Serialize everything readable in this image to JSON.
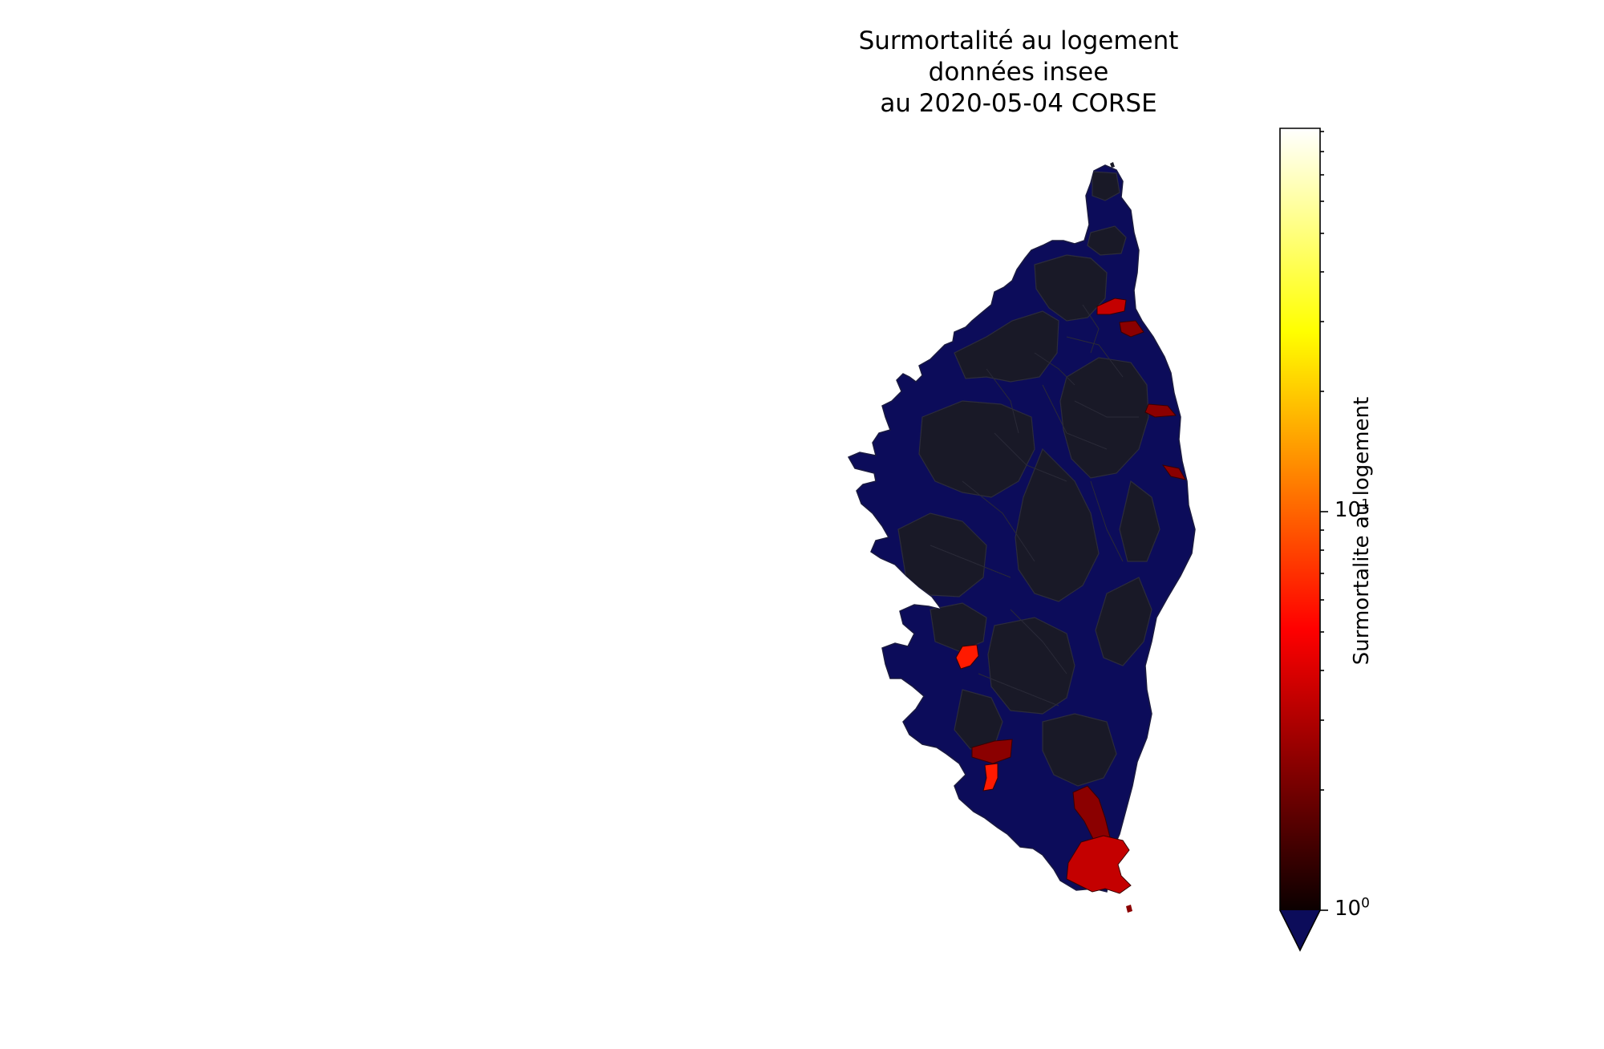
{
  "title": {
    "line1": "Surmortalité au logement",
    "line2": "données insee",
    "line3": "au 2020-05-04 CORSE"
  },
  "colorbar": {
    "label": "Surmortalite au logement",
    "scale": "log",
    "colormap": "hot",
    "range": [
      1,
      100
    ],
    "extend": "min",
    "under_color": "#0c0c5a",
    "ticks": [
      {
        "value": 1,
        "base": "10",
        "exponent": "0"
      },
      {
        "value": 10,
        "base": "10",
        "exponent": "1"
      }
    ]
  },
  "map": {
    "region": "CORSE",
    "colors": {
      "below_range": "#0c0c5a",
      "no_data": "#191927",
      "boundary": "#2a2a38",
      "dark_red": "#8b0000",
      "red": "#c40000",
      "bright_red": "#ff1a00"
    }
  }
}
